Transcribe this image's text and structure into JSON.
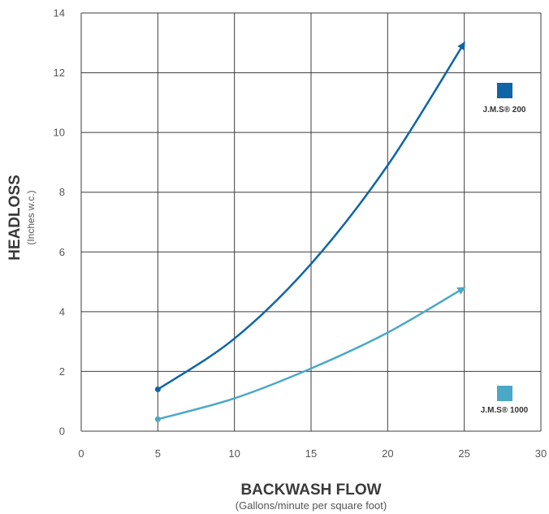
{
  "chart_data": {
    "type": "line",
    "xlabel": "BACKWASH FLOW",
    "xlabel_sub": "(Gallons/minute per square foot)",
    "ylabel": "HEADLOSS",
    "ylabel_sub": "(Inches w.c.)",
    "xlim": [
      0,
      30
    ],
    "ylim": [
      0,
      14
    ],
    "x_ticks": [
      0,
      5,
      10,
      15,
      20,
      25,
      30
    ],
    "y_ticks": [
      0,
      2,
      4,
      6,
      8,
      10,
      12,
      14
    ],
    "grid": true,
    "legend_position": "right",
    "series": [
      {
        "name": "J.M.S® 200",
        "color": "#0f65a6",
        "x": [
          5,
          10,
          15,
          20,
          25
        ],
        "y": [
          1.4,
          3.1,
          5.6,
          8.9,
          13.0
        ]
      },
      {
        "name": "J.M.S® 1000",
        "color": "#4aa8c6",
        "x": [
          5,
          10,
          15,
          20,
          25
        ],
        "y": [
          0.4,
          1.1,
          2.1,
          3.3,
          4.8
        ]
      }
    ]
  }
}
